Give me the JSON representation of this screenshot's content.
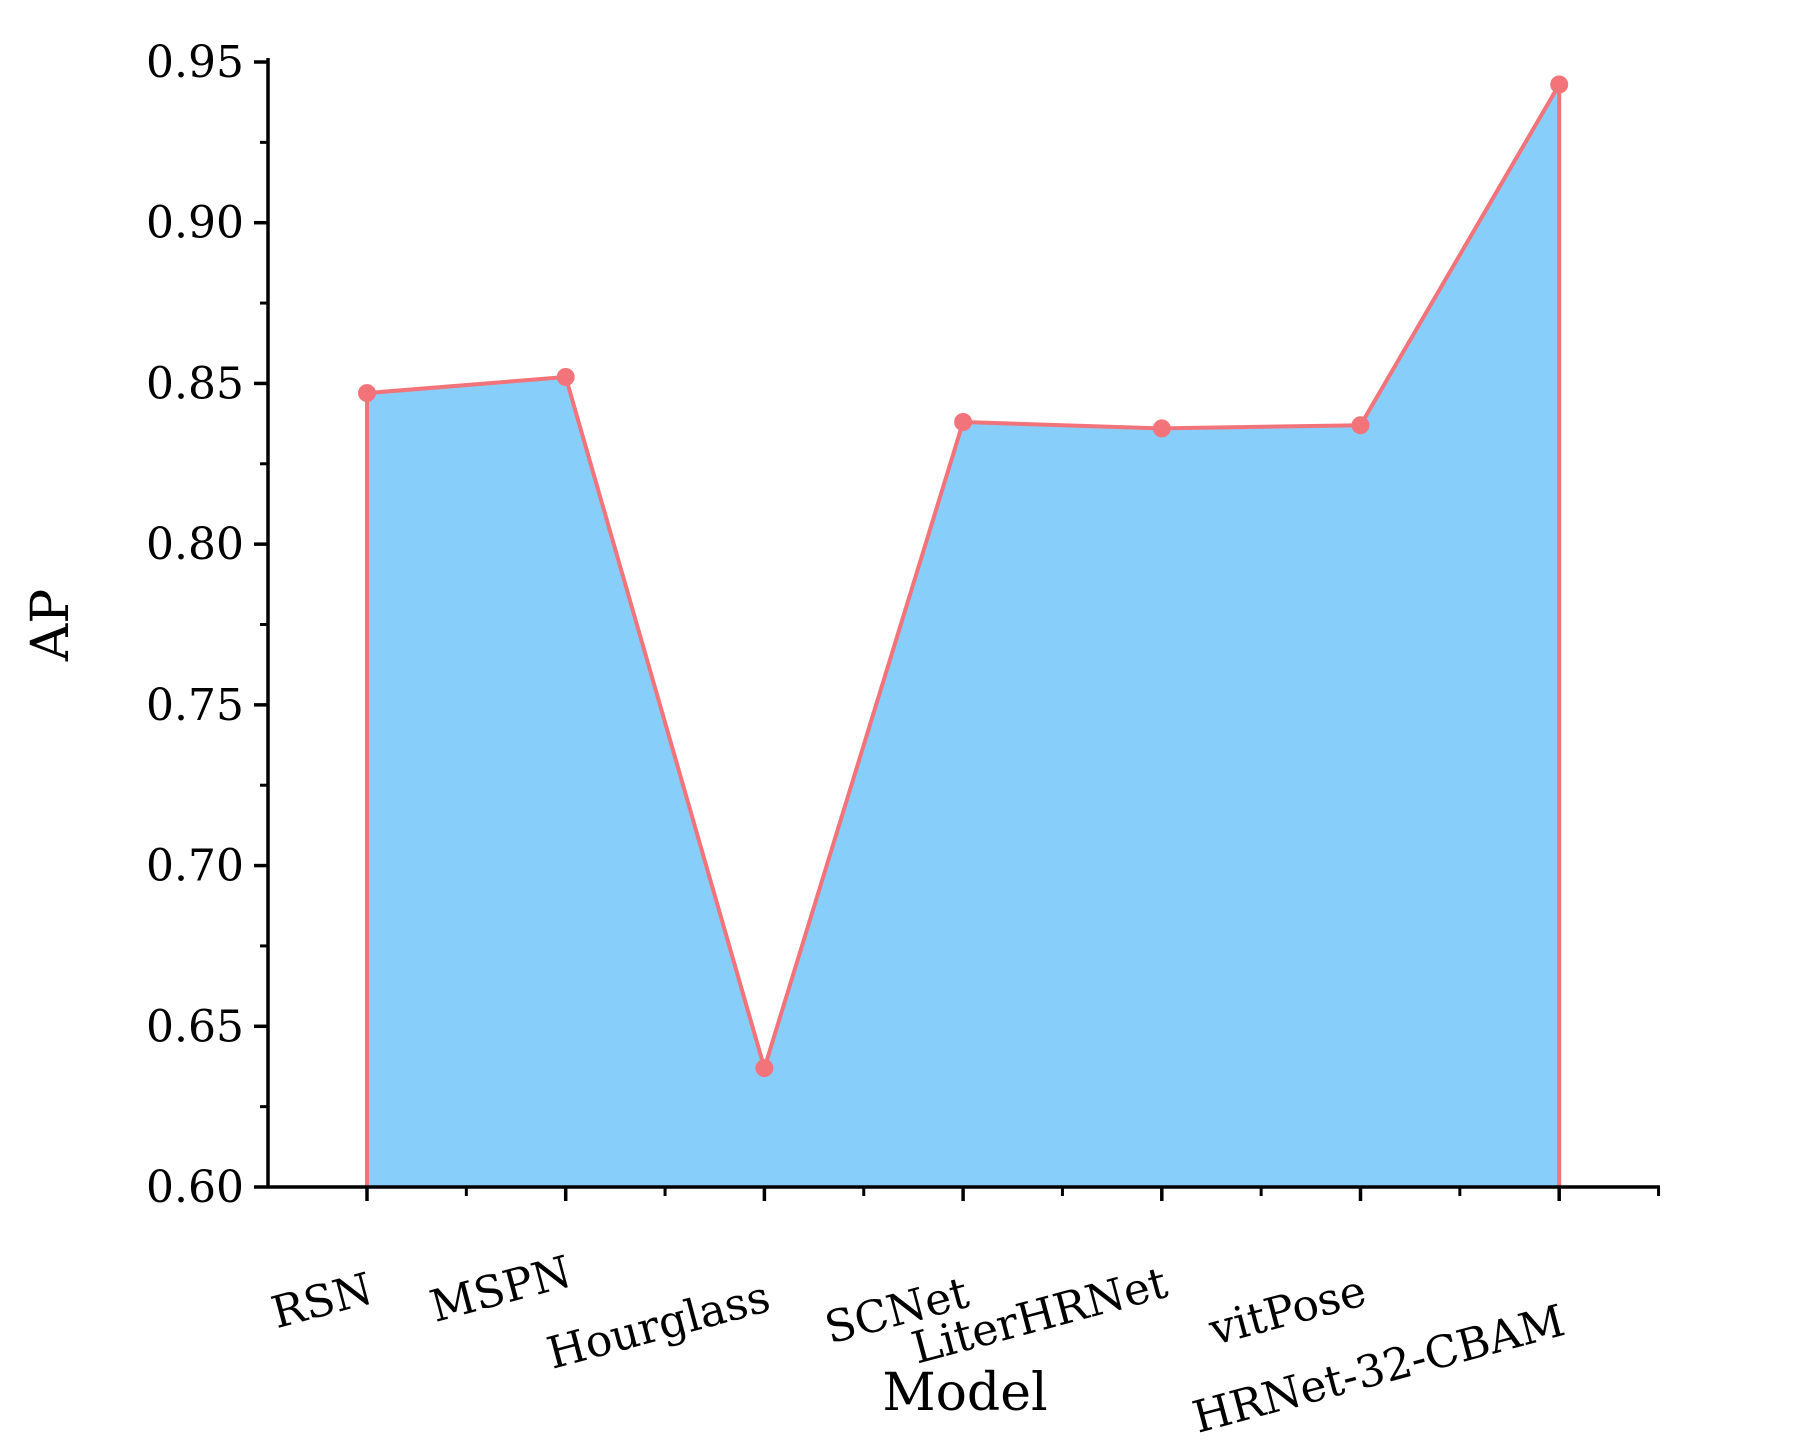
{
  "chart_data": {
    "type": "area",
    "categories": [
      "RSN",
      "MSPN",
      "Hourglass",
      "SCNet",
      "LiterHRNet",
      "vitPose",
      "HRNet-32-CBAM"
    ],
    "values": [
      0.847,
      0.852,
      0.637,
      0.838,
      0.836,
      0.837,
      0.943
    ],
    "xlabel": "Model",
    "ylabel": "AP",
    "ylim": [
      0.6,
      0.95
    ],
    "yticks": [
      "0.60",
      "0.65",
      "0.70",
      "0.75",
      "0.80",
      "0.85",
      "0.90",
      "0.95"
    ],
    "grid": false,
    "legend": "none",
    "colors": {
      "fill": "#87CEFA",
      "line": "#F2737A",
      "marker": "#F2737A",
      "axis": "#000000"
    }
  }
}
